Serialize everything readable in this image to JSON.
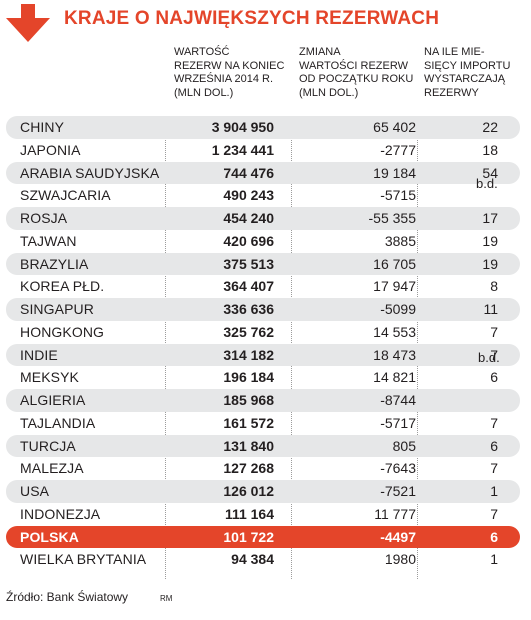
{
  "title": "KRAJE O NAJWIĘKSZYCH REZERWACH",
  "colors": {
    "accent": "#e4452a",
    "row_shade": "#e6e7e8",
    "text": "#231f20"
  },
  "icons": {
    "title": "arrow-down-icon"
  },
  "headers": {
    "reserves": [
      "WARTOŚĆ",
      "REZERW NA KONIEC",
      "WRZEŚNIA 2014 R.",
      "(MLN DOL.)"
    ],
    "change": [
      "ZMIANA",
      "WARTOŚCI REZERW",
      "OD POCZĄTKU ROKU",
      "(MLN DOL.)"
    ],
    "months": [
      "NA ILE MIE-",
      "SIĘCY IMPORTU",
      "WYSTARCZAJĄ",
      "REZERWY"
    ]
  },
  "rows": [
    {
      "country": "CHINY",
      "reserves": "3 904 950",
      "change": "65 402",
      "months": "22"
    },
    {
      "country": "JAPONIA",
      "reserves": "1 234 441",
      "change": "-2777",
      "months": "18"
    },
    {
      "country": "ARABIA SAUDYJSKA",
      "reserves": "744 476",
      "change": "19 184",
      "months": "54"
    },
    {
      "country": "SZWAJCARIA",
      "reserves": "490 243",
      "change": "-5715",
      "months": ""
    },
    {
      "country": "ROSJA",
      "reserves": "454 240",
      "change": "-55 355",
      "months": "17"
    },
    {
      "country": "TAJWAN",
      "reserves": "420 696",
      "change": "3885",
      "months": "19"
    },
    {
      "country": "BRAZYLIA",
      "reserves": "375 513",
      "change": "16 705",
      "months": "19"
    },
    {
      "country": "KOREA PŁD.",
      "reserves": "364 407",
      "change": "17 947",
      "months": "8"
    },
    {
      "country": "SINGAPUR",
      "reserves": "336 636",
      "change": "-5099",
      "months": "11"
    },
    {
      "country": "HONGKONG",
      "reserves": "325 762",
      "change": "14 553",
      "months": "7"
    },
    {
      "country": "INDIE",
      "reserves": "314 182",
      "change": "18 473",
      "months": "7"
    },
    {
      "country": "MEKSYK",
      "reserves": "196 184",
      "change": "14 821",
      "months": "6"
    },
    {
      "country": "ALGIERIA",
      "reserves": "185 968",
      "change": "-8744",
      "months": ""
    },
    {
      "country": "TAJLANDIA",
      "reserves": "161 572",
      "change": "-5717",
      "months": "7"
    },
    {
      "country": "TURCJA",
      "reserves": "131 840",
      "change": "805",
      "months": "6"
    },
    {
      "country": "MALEZJA",
      "reserves": "127 268",
      "change": "-7643",
      "months": "7"
    },
    {
      "country": "USA",
      "reserves": "126 012",
      "change": "-7521",
      "months": "1"
    },
    {
      "country": "INDONEZJA",
      "reserves": "111 164",
      "change": "11 777",
      "months": "7"
    },
    {
      "country": "POLSKA",
      "reserves": "101 722",
      "change": "-4497",
      "months": "6"
    },
    {
      "country": "WIELKA BRYTANIA",
      "reserves": "94 384",
      "change": "1980",
      "months": "1"
    }
  ],
  "notes": {
    "nd1": "b.d.",
    "nd2": "b.d."
  },
  "source": "Źródło: Bank Światowy",
  "signature": "RM"
}
